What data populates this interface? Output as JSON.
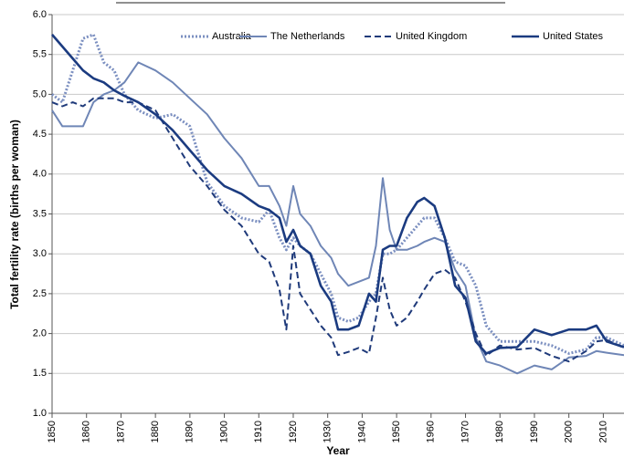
{
  "chart_data": {
    "type": "line",
    "xlabel": "Year",
    "ylabel": "Total fertility rate (births per woman)",
    "x": [
      1850,
      1853,
      1856,
      1859,
      1862,
      1865,
      1868,
      1871,
      1875,
      1880,
      1885,
      1890,
      1895,
      1900,
      1905,
      1910,
      1913,
      1916,
      1918,
      1920,
      1922,
      1925,
      1928,
      1931,
      1933,
      1936,
      1939,
      1942,
      1944,
      1946,
      1948,
      1950,
      1953,
      1956,
      1958,
      1961,
      1964,
      1967,
      1970,
      1973,
      1976,
      1980,
      1985,
      1990,
      1995,
      2000,
      2005,
      2008,
      2011,
      2016
    ],
    "series": [
      {
        "name": "Australia",
        "color": "#7b8fc0",
        "dash": "dotted",
        "width": 3,
        "values": [
          5.0,
          4.9,
          5.3,
          5.7,
          5.75,
          5.4,
          5.3,
          5.0,
          4.8,
          4.7,
          4.75,
          4.6,
          3.9,
          3.6,
          3.45,
          3.4,
          3.55,
          3.2,
          3.05,
          3.2,
          3.1,
          3.0,
          2.75,
          2.5,
          2.2,
          2.15,
          2.2,
          2.4,
          2.5,
          3.0,
          3.0,
          3.05,
          3.2,
          3.35,
          3.45,
          3.45,
          3.2,
          2.9,
          2.85,
          2.6,
          2.1,
          1.9,
          1.9,
          1.9,
          1.85,
          1.75,
          1.8,
          1.95,
          1.95,
          1.85
        ]
      },
      {
        "name": "The Netherlands",
        "color": "#6f86b6",
        "dash": "solid",
        "width": 2,
        "values": [
          4.8,
          4.6,
          4.6,
          4.6,
          4.9,
          5.0,
          5.05,
          5.15,
          5.4,
          5.3,
          5.15,
          4.95,
          4.75,
          4.45,
          4.2,
          3.85,
          3.85,
          3.6,
          3.35,
          3.85,
          3.5,
          3.35,
          3.1,
          2.95,
          2.75,
          2.6,
          2.65,
          2.7,
          3.1,
          3.95,
          3.3,
          3.05,
          3.05,
          3.1,
          3.15,
          3.2,
          3.15,
          2.8,
          2.6,
          1.95,
          1.65,
          1.6,
          1.5,
          1.6,
          1.55,
          1.7,
          1.72,
          1.78,
          1.76,
          1.73
        ]
      },
      {
        "name": "United Kingdom",
        "color": "#1f3a7a",
        "dash": "dashed",
        "width": 2,
        "values": [
          4.9,
          4.85,
          4.9,
          4.85,
          4.95,
          4.95,
          4.95,
          4.9,
          4.9,
          4.8,
          4.45,
          4.1,
          3.85,
          3.55,
          3.35,
          3.0,
          2.9,
          2.55,
          2.05,
          3.1,
          2.5,
          2.3,
          2.1,
          1.95,
          1.73,
          1.77,
          1.82,
          1.75,
          2.2,
          2.7,
          2.3,
          2.1,
          2.2,
          2.4,
          2.55,
          2.75,
          2.8,
          2.7,
          2.4,
          2.0,
          1.72,
          1.85,
          1.8,
          1.82,
          1.72,
          1.65,
          1.78,
          1.9,
          1.92,
          1.82
        ]
      },
      {
        "name": "United States",
        "color": "#1b3b80",
        "dash": "solid",
        "width": 2.6,
        "values": [
          5.75,
          5.6,
          5.45,
          5.3,
          5.2,
          5.15,
          5.05,
          4.98,
          4.9,
          4.75,
          4.55,
          4.3,
          4.05,
          3.85,
          3.75,
          3.6,
          3.55,
          3.45,
          3.15,
          3.3,
          3.1,
          3.0,
          2.6,
          2.4,
          2.05,
          2.05,
          2.1,
          2.5,
          2.4,
          3.05,
          3.1,
          3.1,
          3.45,
          3.65,
          3.7,
          3.6,
          3.2,
          2.6,
          2.45,
          1.9,
          1.75,
          1.82,
          1.83,
          2.05,
          1.98,
          2.05,
          2.05,
          2.1,
          1.9,
          1.83
        ]
      }
    ],
    "xlim": [
      1850,
      2016
    ],
    "xticks": [
      1850,
      1860,
      1870,
      1880,
      1890,
      1900,
      1910,
      1920,
      1930,
      1940,
      1950,
      1960,
      1970,
      1980,
      1990,
      2000,
      2010
    ],
    "ylim": [
      1,
      6
    ],
    "yticks": [
      {
        "value": 1,
        "label": "1.0"
      },
      {
        "value": 1.5,
        "label": "1.5"
      },
      {
        "value": 2,
        "label": "2.0"
      },
      {
        "value": 2.5,
        "label": "2.5"
      },
      {
        "value": 3,
        "label": "3.0"
      },
      {
        "value": 3.5,
        "label": "3.5"
      },
      {
        "value": 4,
        "label": "4.0"
      },
      {
        "value": 4.5,
        "label": "4.5"
      },
      {
        "value": 5,
        "label": "5.0"
      },
      {
        "value": 5.5,
        "label": "5.5"
      },
      {
        "value": 6,
        "label": "6.0"
      }
    ],
    "grid": true,
    "legend": "top-right"
  }
}
